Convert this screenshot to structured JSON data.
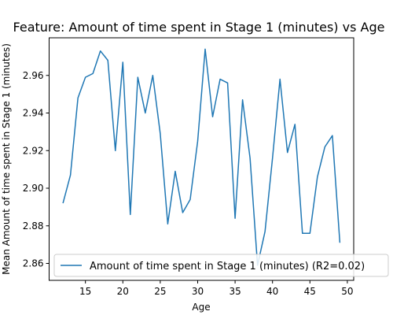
{
  "chart_data": {
    "type": "line",
    "title": "Feature: Amount of time spent in Stage 1 (minutes) vs Age",
    "xlabel": "Age",
    "ylabel": "Mean Amount of time spent in Stage 1 (minutes)",
    "xlim": [
      10.15,
      50.85
    ],
    "ylim": [
      2.851,
      2.98
    ],
    "x_ticks": [
      15,
      20,
      25,
      30,
      35,
      40,
      45,
      50
    ],
    "y_ticks": [
      2.86,
      2.88,
      2.9,
      2.92,
      2.94,
      2.96
    ],
    "x_tick_labels": [
      "15",
      "20",
      "25",
      "30",
      "35",
      "40",
      "45",
      "50"
    ],
    "y_tick_labels": [
      "2.86",
      "2.88",
      "2.90",
      "2.92",
      "2.94",
      "2.96"
    ],
    "grid": false,
    "legend_position": "lower right",
    "line_color": "#1f77b4",
    "series": [
      {
        "name": "Amount of time spent in Stage 1 (minutes) (R2=0.02)",
        "x": [
          12,
          13,
          14,
          15,
          16,
          17,
          18,
          19,
          20,
          21,
          22,
          23,
          24,
          25,
          26,
          27,
          28,
          29,
          30,
          31,
          32,
          33,
          34,
          35,
          36,
          37,
          38,
          39,
          40,
          41,
          42,
          43,
          44,
          45,
          46,
          47,
          48,
          49
        ],
        "y": [
          2.892,
          2.907,
          2.948,
          2.959,
          2.961,
          2.973,
          2.968,
          2.92,
          2.967,
          2.886,
          2.959,
          2.94,
          2.96,
          2.929,
          2.881,
          2.909,
          2.887,
          2.894,
          2.925,
          2.974,
          2.938,
          2.958,
          2.956,
          2.884,
          2.947,
          2.916,
          2.859,
          2.877,
          2.916,
          2.958,
          2.919,
          2.934,
          2.876,
          2.876,
          2.906,
          2.922,
          2.928,
          2.871
        ]
      }
    ]
  }
}
